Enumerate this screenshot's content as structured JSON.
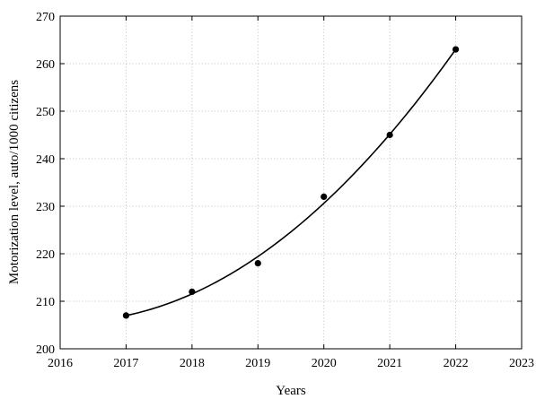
{
  "chart_data": {
    "type": "scatter",
    "title": "",
    "xlabel": "Years",
    "ylabel": "Motorization level, auto/1000 citizens",
    "xlim": [
      2016,
      2023
    ],
    "ylim": [
      200,
      270
    ],
    "xticks": [
      2016,
      2017,
      2018,
      2019,
      2020,
      2021,
      2022,
      2023
    ],
    "yticks": [
      200,
      210,
      220,
      230,
      240,
      250,
      260,
      270
    ],
    "grid": true,
    "legend": "none",
    "series": [
      {
        "x": [
          2017,
          2018,
          2019,
          2020,
          2021,
          2022
        ],
        "y": [
          207,
          212,
          218,
          232,
          245,
          263
        ]
      }
    ],
    "fit_curve": {
      "type": "quadratic",
      "x_range": [
        2017,
        2022
      ],
      "points": [
        {
          "x": 2017,
          "y": 207
        },
        {
          "x": 2019.5,
          "y": 224.6
        },
        {
          "x": 2022,
          "y": 263
        }
      ]
    },
    "colors": {
      "marker": "#000000",
      "curve": "#000000",
      "grid": "#c8c8c8"
    }
  }
}
